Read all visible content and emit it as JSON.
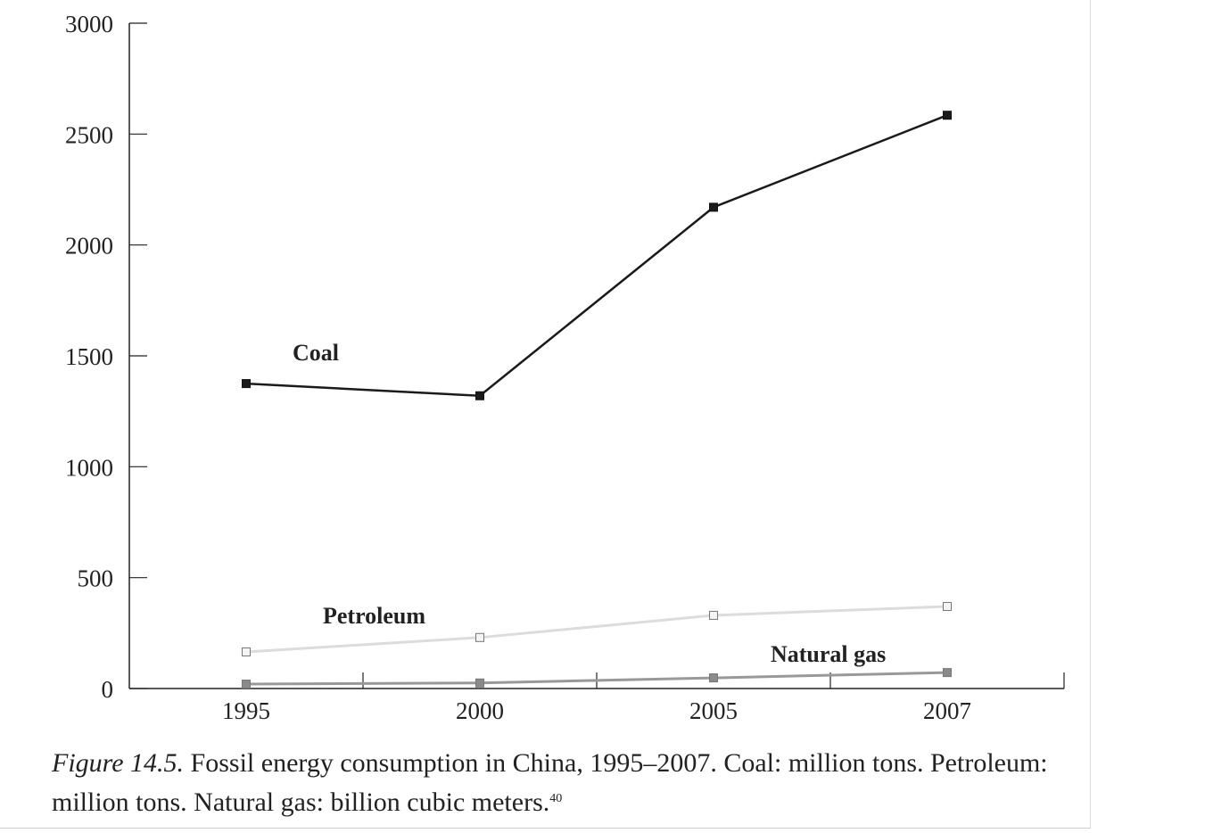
{
  "chart_data": {
    "type": "line",
    "categories": [
      "1995",
      "2000",
      "2005",
      "2007"
    ],
    "series": [
      {
        "name": "Coal",
        "values": [
          1375,
          1320,
          2170,
          2585
        ],
        "color": "#1a1a1a",
        "marker_fill": "#1a1a1a"
      },
      {
        "name": "Petroleum",
        "values": [
          165,
          230,
          330,
          370
        ],
        "color": "#dcdcdc",
        "marker_fill": "#f4f4f4"
      },
      {
        "name": "Natural gas",
        "values": [
          20,
          25,
          48,
          72
        ],
        "color": "#999999",
        "marker_fill": "#8a8a8a"
      }
    ],
    "ylim": [
      0,
      3000
    ],
    "yticks": [
      "0",
      "500",
      "1000",
      "1500",
      "2000",
      "2500",
      "3000"
    ],
    "xlabel": "",
    "ylabel": "",
    "grid": false,
    "labels": [
      "Coal",
      "Petroleum",
      "Natural gas"
    ]
  },
  "caption": {
    "figure": "Figure 14.5.",
    "text": " Fossil energy consumption in China, 1995–2007. Coal: million tons. Petroleum: million tons. Natural gas: billion cubic meters.",
    "footnote": "40"
  }
}
